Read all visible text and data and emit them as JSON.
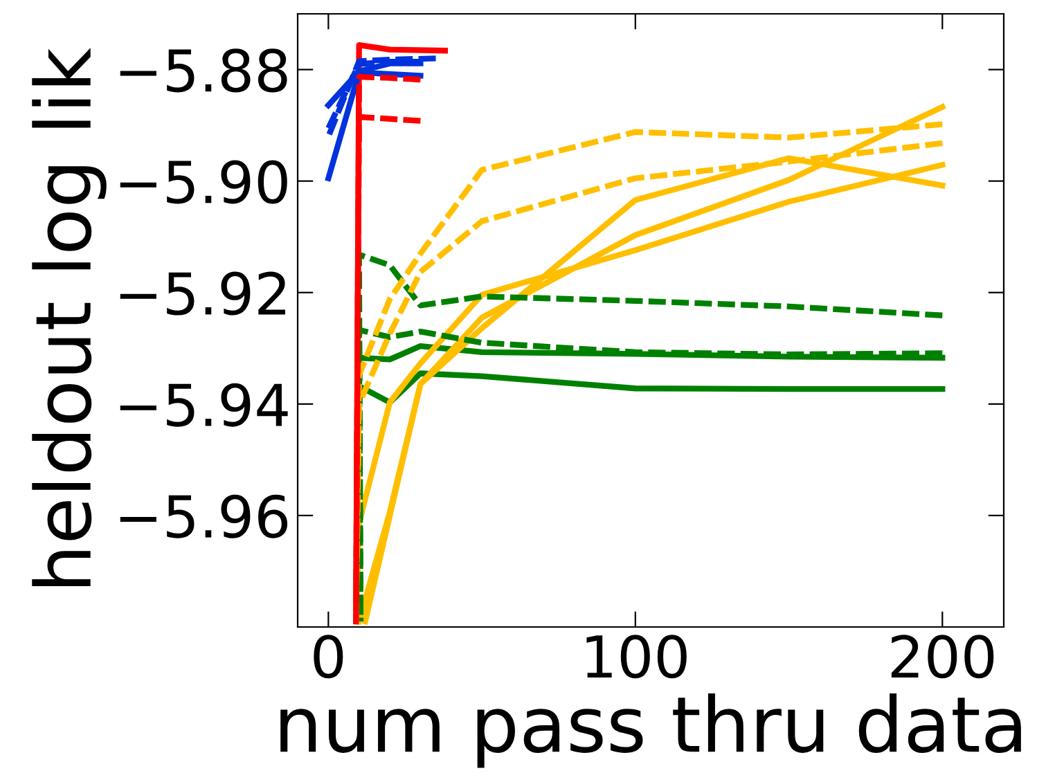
{
  "chart_data": {
    "type": "line",
    "xlabel": "num pass thru data",
    "ylabel": "heldout log lik",
    "xlim": [
      -10,
      220
    ],
    "ylim": [
      -5.98,
      -5.87
    ],
    "xticks": [
      0,
      100,
      200
    ],
    "yticks": [
      {
        "value": -5.96,
        "label": "−5.96"
      },
      {
        "value": -5.94,
        "label": "−5.94"
      },
      {
        "value": -5.92,
        "label": "−5.92"
      },
      {
        "value": -5.9,
        "label": "−5.90"
      },
      {
        "value": -5.88,
        "label": "−5.88"
      }
    ],
    "grid": false,
    "legend": false,
    "marker": "none",
    "series": [
      {
        "color": "#008000",
        "line_style": "solid",
        "x": [
          9,
          10,
          20,
          30,
          50,
          100,
          150,
          200
        ],
        "values": [
          -5.979,
          -5.9317,
          -5.932,
          -5.9296,
          -5.9307,
          -5.931,
          -5.9315,
          -5.9317
        ]
      },
      {
        "color": "#008000",
        "line_style": "solid",
        "x": [
          9,
          10,
          20,
          30,
          50,
          100,
          150,
          200
        ],
        "values": [
          -5.979,
          -5.9368,
          -5.9397,
          -5.9345,
          -5.935,
          -5.9372,
          -5.9373,
          -5.9373
        ]
      },
      {
        "color": "#008000",
        "line_style": "dashed",
        "x": [
          10.5,
          10,
          20,
          30,
          50,
          100,
          150,
          200
        ],
        "values": [
          -5.979,
          -5.9132,
          -5.9151,
          -5.9223,
          -5.9207,
          -5.9215,
          -5.9225,
          -5.9241
        ]
      },
      {
        "color": "#008000",
        "line_style": "dashed",
        "x": [
          10.5,
          10,
          20,
          30,
          50,
          100,
          150,
          200
        ],
        "values": [
          -5.979,
          -5.9267,
          -5.928,
          -5.927,
          -5.929,
          -5.9307,
          -5.9311,
          -5.9309
        ]
      },
      {
        "color": "#ffbf00",
        "line_style": "solid",
        "x": [
          9,
          10,
          20,
          30,
          50,
          100,
          150,
          200
        ],
        "values": [
          -5.979,
          -5.9614,
          -5.9397,
          -5.9327,
          -5.9204,
          -5.9124,
          -5.9037,
          -5.8971
        ]
      },
      {
        "color": "#ffbf00",
        "line_style": "solid",
        "x": [
          10,
          20,
          30,
          50,
          100,
          150,
          200
        ],
        "values": [
          -5.979,
          -5.9594,
          -5.9364,
          -5.9264,
          -5.9034,
          -5.8959,
          -5.9008
        ]
      },
      {
        "color": "#ffbf00",
        "line_style": "solid",
        "x": [
          12,
          30,
          50,
          100,
          150,
          200
        ],
        "values": [
          -5.979,
          -5.9364,
          -5.9245,
          -5.9097,
          -5.8998,
          -5.8867
        ]
      },
      {
        "color": "#ffbf00",
        "line_style": "dashed",
        "x": [
          9,
          10,
          20,
          30,
          50,
          100,
          150,
          200
        ],
        "values": [
          -5.979,
          -5.9348,
          -5.9212,
          -5.913,
          -5.898,
          -5.8912,
          -5.8922,
          -5.8898
        ]
      },
      {
        "color": "#ffbf00",
        "line_style": "dashed",
        "x": [
          9,
          10,
          20,
          30,
          50,
          100,
          150,
          200
        ],
        "values": [
          -5.979,
          -5.94,
          -5.9274,
          -5.9163,
          -5.9072,
          -5.8995,
          -5.8965,
          -5.8932
        ]
      },
      {
        "color": "#ff0000",
        "line_style": "dashed",
        "x": [
          9,
          10,
          20,
          30
        ],
        "values": [
          -5.979,
          -5.8813,
          -5.8815,
          -5.8818
        ]
      },
      {
        "color": "#ff0000",
        "line_style": "dashed",
        "x": [
          9,
          10,
          30
        ],
        "values": [
          -5.979,
          -5.8885,
          -5.8892
        ]
      },
      {
        "color": "#ff0000",
        "line_style": "solid",
        "x": [
          9,
          10,
          20,
          38
        ],
        "values": [
          -5.979,
          -5.8756,
          -5.8764,
          -5.8766
        ]
      },
      {
        "color": "#0033dd",
        "line_style": "solid",
        "x": [
          0,
          10,
          20,
          30
        ],
        "values": [
          -5.8864,
          -5.8803,
          -5.8789,
          -5.8789
        ]
      },
      {
        "color": "#0033dd",
        "line_style": "solid",
        "x": [
          0,
          10,
          30
        ],
        "values": [
          -5.8995,
          -5.8805,
          -5.8811
        ]
      },
      {
        "color": "#0033dd",
        "line_style": "dashed",
        "x": [
          0,
          10,
          20,
          35
        ],
        "values": [
          -5.892,
          -5.8785,
          -5.8782,
          -5.878
        ]
      },
      {
        "color": "#0033dd",
        "line_style": "dashed",
        "x": [
          0,
          10,
          20,
          30
        ],
        "values": [
          -5.8905,
          -5.879,
          -5.8786,
          -5.8786
        ]
      }
    ]
  }
}
